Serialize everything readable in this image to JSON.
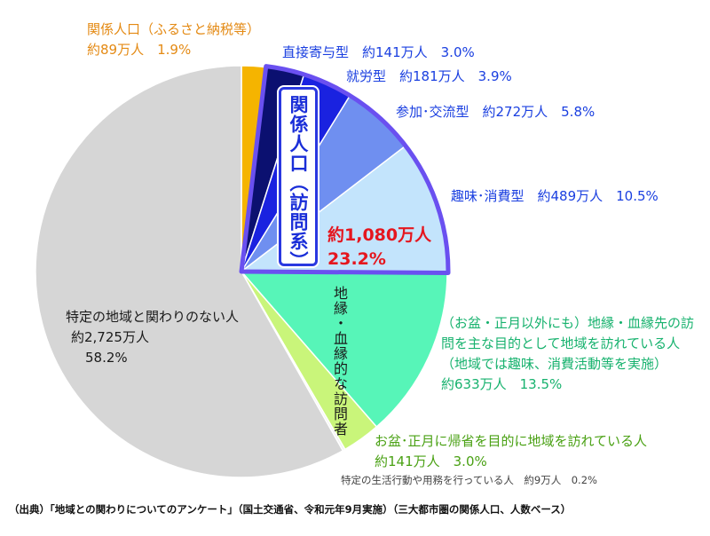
{
  "chart_data": {
    "type": "pie",
    "slices": [
      {
        "label": "関係人口（ふるさと納税等）",
        "amount": "約89万人",
        "percent_text": "1.9%",
        "value": 1.9,
        "color": "#f5b400"
      },
      {
        "label": "直接寄与型",
        "amount": "約141万人",
        "percent_text": "3.0%",
        "value": 3.0,
        "color": "#0b1070"
      },
      {
        "label": "就労型",
        "amount": "約181万人",
        "percent_text": "3.9%",
        "value": 3.9,
        "color": "#1a22e0"
      },
      {
        "label": "参加･交流型",
        "amount": "約272万人",
        "percent_text": "5.8%",
        "value": 5.8,
        "color": "#6f8ff0"
      },
      {
        "label": "趣味･消費型",
        "amount": "約489万人",
        "percent_text": "10.5%",
        "value": 10.5,
        "color": "#c3e4fc"
      },
      {
        "label": "（お盆・正月以外にも）地縁・血縁先の訪問を主な目的として地域を訪れている人（地域では趣味、消費活動等を実施）",
        "amount": "約633万人",
        "percent_text": "13.5%",
        "value": 13.5,
        "color": "#57f5b8"
      },
      {
        "label": "お盆･正月に帰省を目的に地域を訪れている人",
        "amount": "約141万人",
        "percent_text": "3.0%",
        "value": 3.0,
        "color": "#c9f57a"
      },
      {
        "label": "特定の生活行動や用務を行っている人",
        "amount": "約9万人",
        "percent_text": "0.2%",
        "value": 0.2,
        "color": "#f3f3f3"
      },
      {
        "label": "特定の地域と関わりのない人",
        "amount": "約2,725万人",
        "percent_text": "58.2%",
        "value": 58.2,
        "color": "#d6d6d6"
      }
    ],
    "group_highlight": {
      "title": "関係人口（訪問系）",
      "total": "約1,080万人",
      "percent": "23.2%",
      "outline_color": "#6a50f0"
    },
    "chiin_group_label": "地縁・血縁的な訪問者"
  },
  "labels": {
    "furusato_line1": "関係人口（ふるさと納税等）",
    "furusato_line2": "約89万人　1.9%",
    "chokusetsu": "直接寄与型　約141万人　3.0%",
    "shuro": "就労型　約181万人　3.9%",
    "sanka": "参加･交流型　約272万人　5.8%",
    "shumi": "趣味･消費型　約489万人　10.5%",
    "chien_line1": "（お盆・正月以外にも）地縁・血縁先の訪",
    "chien_line2": "問を主な目的として地域を訪れている人",
    "chien_line3": "（地域では趣味、消費活動等を実施）",
    "chien_line4": "約633万人　13.5%",
    "bon_line1": "お盆･正月に帰省を目的に地域を訪れている人",
    "bon_line2": "約141万人　3.0%",
    "tokutei_seikatsu": "特定の生活行動や用務を行っている人　約9万人　0.2%",
    "nashi_line1": "特定の地域と関わりのない人",
    "nashi_line2": "約2,725万人",
    "nashi_line3": "58.2%",
    "footer": "（出典）「地域との関わりについてのアンケート」（国土交通省、令和元年9月実施）（三大都市圏の関係人口、人数ベース）"
  }
}
